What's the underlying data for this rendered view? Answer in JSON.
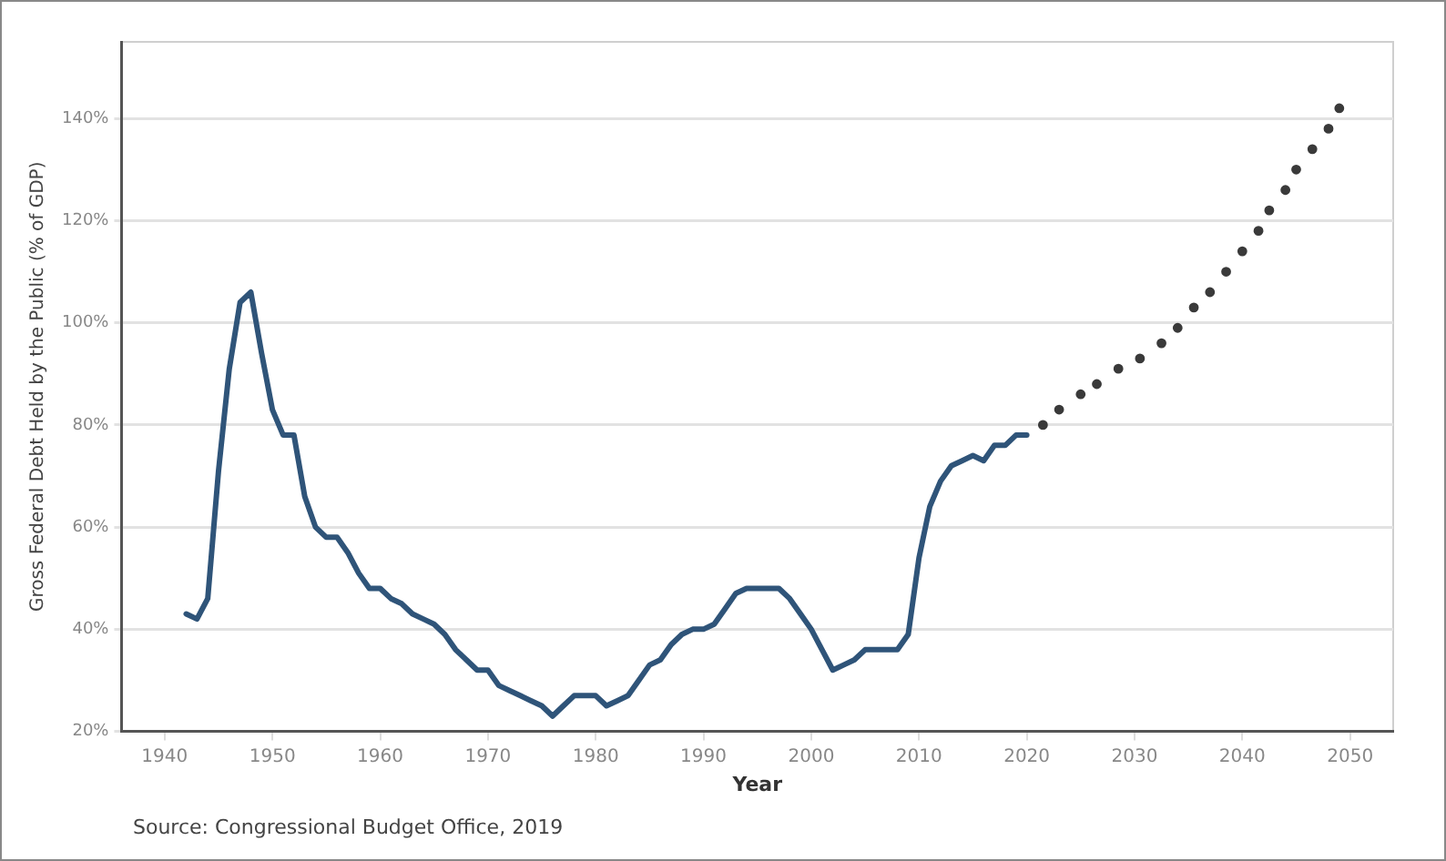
{
  "chart_data": {
    "type": "line",
    "xlabel": "Year",
    "ylabel": "Gross Federal Debt Held by the Public (% of GDP)",
    "annotations": [
      "Source: Congressional Budget Office, 2019"
    ],
    "xlim": [
      1936,
      2054
    ],
    "xticks": [
      1940,
      1950,
      1960,
      1970,
      1980,
      1990,
      2000,
      2010,
      2020,
      2030,
      2040,
      2050
    ],
    "ylim": [
      20,
      155
    ],
    "yticks": [
      {
        "value": 20,
        "label": "20%"
      },
      {
        "value": 40,
        "label": "40%"
      },
      {
        "value": 60,
        "label": "60%"
      },
      {
        "value": 80,
        "label": "80%"
      },
      {
        "value": 100,
        "label": "100%"
      },
      {
        "value": 120,
        "label": "120%"
      },
      {
        "value": 140,
        "label": "140%"
      }
    ],
    "grid": "y",
    "legend": false,
    "series": [
      {
        "type": "line",
        "color": "#2f5479",
        "line_style": "solid",
        "marker": "none",
        "x": [
          1942,
          1943,
          1944,
          1945,
          1946,
          1947,
          1948,
          1949,
          1950,
          1951,
          1952,
          1953,
          1954,
          1955,
          1956,
          1957,
          1958,
          1959,
          1960,
          1961,
          1962,
          1963,
          1964,
          1965,
          1966,
          1967,
          1968,
          1969,
          1970,
          1971,
          1972,
          1973,
          1974,
          1975,
          1976,
          1977,
          1978,
          1979,
          1980,
          1981,
          1982,
          1983,
          1984,
          1985,
          1986,
          1987,
          1988,
          1989,
          1990,
          1991,
          1992,
          1993,
          1994,
          1995,
          1996,
          1997,
          1998,
          1999,
          2000,
          2001,
          2002,
          2003,
          2004,
          2005,
          2006,
          2007,
          2008,
          2009,
          2010,
          2011,
          2012,
          2013,
          2014,
          2015,
          2016,
          2017,
          2018,
          2019,
          2020
        ],
        "values": [
          43,
          42,
          46,
          71,
          91,
          104,
          106,
          94,
          83,
          78,
          78,
          66,
          60,
          58,
          58,
          55,
          51,
          48,
          48,
          46,
          45,
          43,
          42,
          41,
          39,
          36,
          34,
          32,
          32,
          29,
          28,
          27,
          26,
          25,
          23,
          25,
          27,
          27,
          27,
          25,
          26,
          27,
          30,
          33,
          34,
          37,
          39,
          40,
          40,
          41,
          44,
          47,
          48,
          48,
          48,
          48,
          46,
          43,
          40,
          36,
          32,
          33,
          34,
          36,
          36,
          36,
          36,
          39,
          54,
          64,
          69,
          72,
          73,
          74,
          73,
          76,
          76,
          78,
          78
        ]
      },
      {
        "type": "scatter",
        "color": "#3a3a3a",
        "marker": "circle",
        "x": [
          2021.5,
          2023,
          2025,
          2026.5,
          2028.5,
          2030.5,
          2032.5,
          2034,
          2035.5,
          2037,
          2038.5,
          2040,
          2041.5,
          2042.5,
          2044,
          2045,
          2046.5,
          2048,
          2049
        ],
        "values": [
          80,
          83,
          86,
          88,
          91,
          93,
          96,
          99,
          103,
          106,
          110,
          114,
          118,
          122,
          126,
          130,
          134,
          138,
          142
        ]
      }
    ]
  }
}
